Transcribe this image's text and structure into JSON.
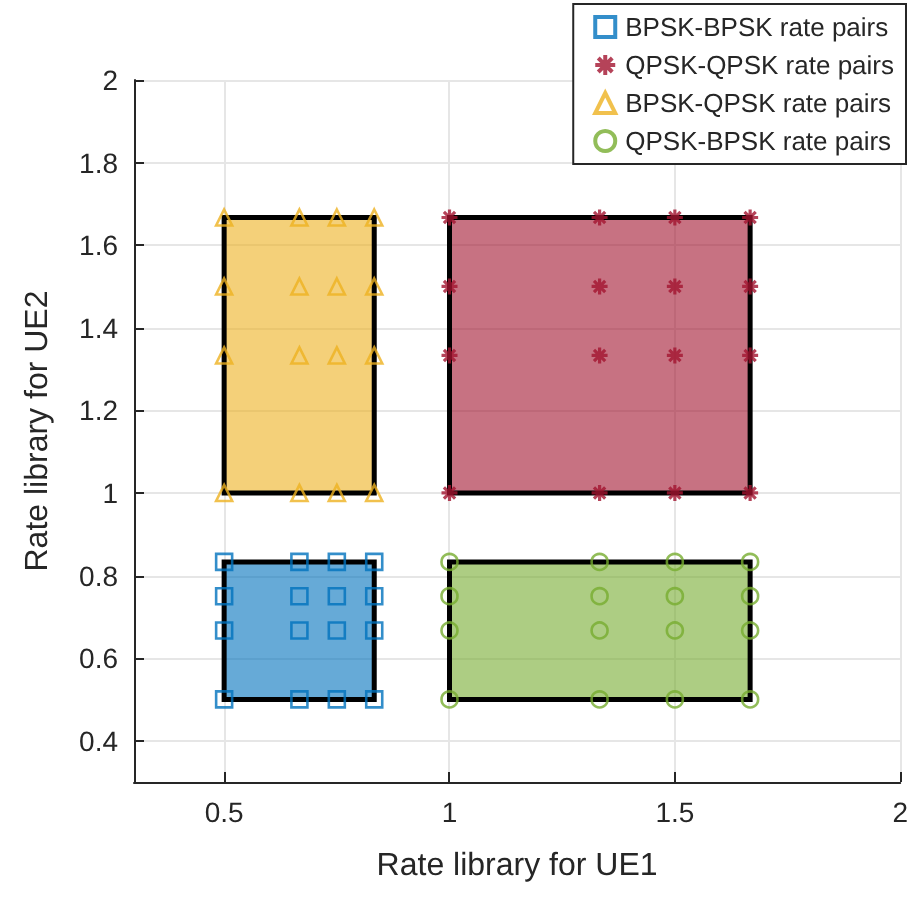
{
  "chart_data": {
    "type": "scatter",
    "xlabel": "Rate library for UE1",
    "ylabel": "Rate library for UE2",
    "xlim": [
      0.3,
      2
    ],
    "ylim": [
      0.3,
      2
    ],
    "xticks": [
      0.5,
      1,
      1.5,
      2
    ],
    "yticks": [
      0.4,
      0.6,
      0.8,
      1,
      1.2,
      1.4,
      1.6,
      1.8,
      2
    ],
    "grid": true,
    "legend": "top right",
    "series": [
      {
        "type": "area",
        "color": "#0072bd",
        "x": [
          0.5,
          0.833,
          0.833,
          0.5,
          0.5
        ],
        "values": [
          0.5,
          0.5,
          0.833,
          0.833,
          0.5
        ]
      },
      {
        "type": "area",
        "color": "#a2142f",
        "x": [
          1,
          1.667,
          1.667,
          1,
          1
        ],
        "values": [
          1,
          1,
          1.667,
          1.667,
          1
        ]
      },
      {
        "type": "area",
        "color": "#edb120",
        "x": [
          0.5,
          0.833,
          0.833,
          0.5,
          0.5
        ],
        "values": [
          1,
          1,
          1.667,
          1.667,
          1
        ]
      },
      {
        "type": "area",
        "color": "#77ac30",
        "x": [
          1,
          1.667,
          1.667,
          1,
          1
        ],
        "values": [
          0.5,
          0.5,
          0.833,
          0.833,
          0.5
        ]
      },
      {
        "name": "BPSK-BPSK rate pairs",
        "color": "#0072bd",
        "marker": "square",
        "x": [
          0.5,
          0.667,
          0.75,
          0.833,
          0.5,
          0.667,
          0.75,
          0.833,
          0.5,
          0.667,
          0.75,
          0.833,
          0.5,
          0.667,
          0.75,
          0.833
        ],
        "values": [
          0.5,
          0.5,
          0.5,
          0.5,
          0.667,
          0.667,
          0.667,
          0.667,
          0.75,
          0.75,
          0.75,
          0.75,
          0.833,
          0.833,
          0.833,
          0.833
        ]
      },
      {
        "name": "QPSK-QPSK rate pairs",
        "color": "#a2142f",
        "marker": "cross",
        "x": [
          1,
          1.333,
          1.5,
          1.667,
          1,
          1.333,
          1.5,
          1.667,
          1,
          1.333,
          1.5,
          1.667,
          1,
          1.333,
          1.5,
          1.667
        ],
        "values": [
          1,
          1,
          1,
          1,
          1.333,
          1.333,
          1.333,
          1.333,
          1.5,
          1.5,
          1.5,
          1.5,
          1.667,
          1.667,
          1.667,
          1.667
        ]
      },
      {
        "name": "BPSK-QPSK rate pairs",
        "color": "#edb120",
        "marker": "triangle",
        "x": [
          0.5,
          0.667,
          0.75,
          0.833,
          0.5,
          0.667,
          0.75,
          0.833,
          0.5,
          0.667,
          0.75,
          0.833,
          0.5,
          0.667,
          0.75,
          0.833
        ],
        "values": [
          1,
          1,
          1,
          1,
          1.333,
          1.333,
          1.333,
          1.333,
          1.5,
          1.5,
          1.5,
          1.5,
          1.667,
          1.667,
          1.667,
          1.667
        ]
      },
      {
        "name": "QPSK-BPSK rate pairs",
        "color": "#77ac30",
        "marker": "circle",
        "x": [
          1,
          1.333,
          1.5,
          1.667,
          1,
          1.333,
          1.5,
          1.667,
          1,
          1.333,
          1.5,
          1.667,
          1,
          1.333,
          1.5,
          1.667
        ],
        "values": [
          0.5,
          0.5,
          0.5,
          0.5,
          0.667,
          0.667,
          0.667,
          0.667,
          0.75,
          0.75,
          0.75,
          0.75,
          0.833,
          0.833,
          0.833,
          0.833
        ]
      }
    ]
  }
}
